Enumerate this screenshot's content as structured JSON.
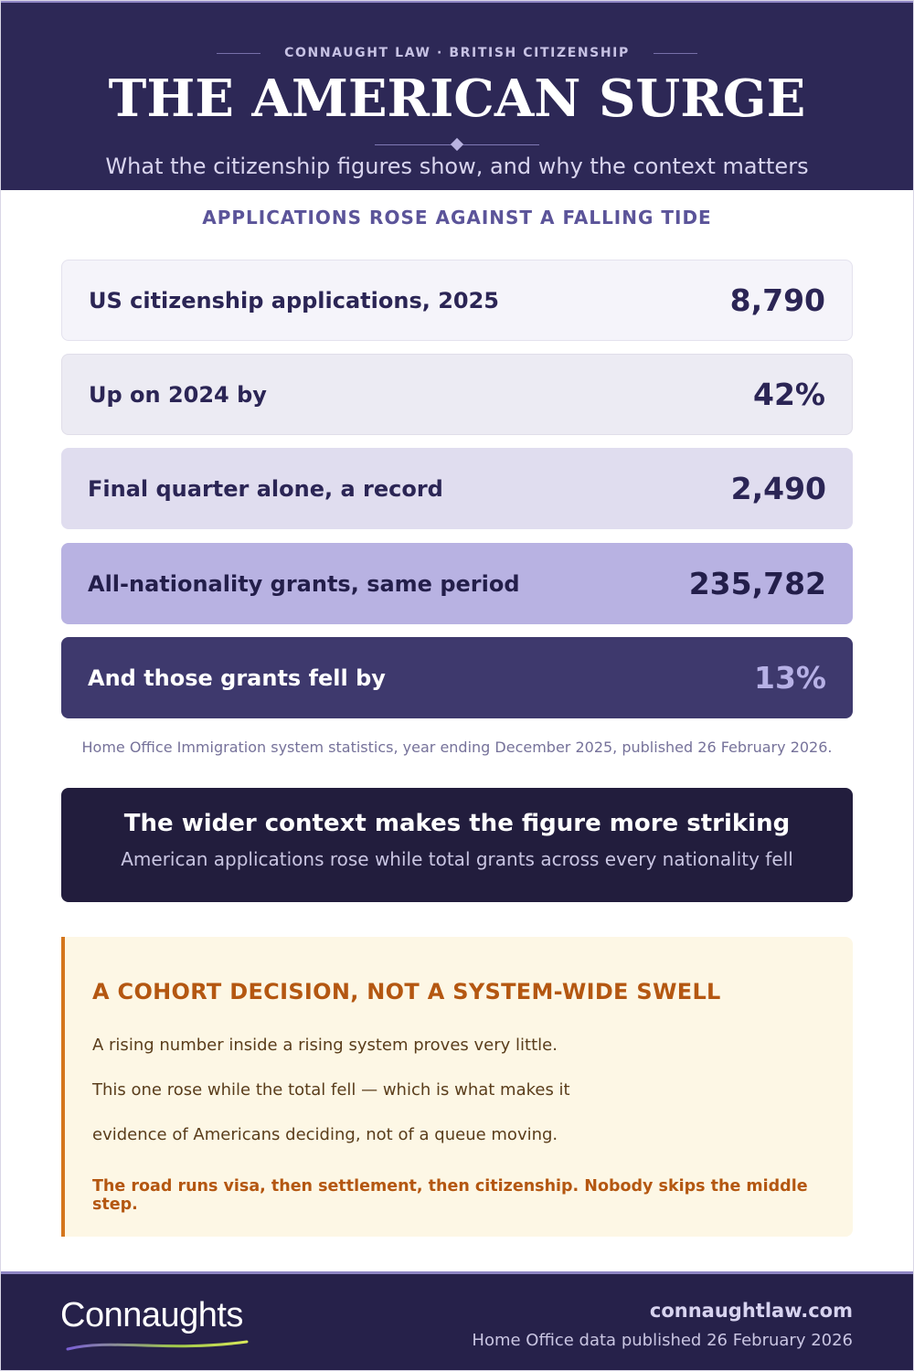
{
  "header": {
    "kicker": "CONNAUGHT LAW · BRITISH CITIZENSHIP",
    "title": "THE AMERICAN SURGE",
    "subtitle": "What the citizenship figures show, and why the context matters"
  },
  "section_heading": "APPLICATIONS ROSE AGAINST A FALLING TIDE",
  "stats": [
    {
      "label": "US citizenship applications, 2025",
      "value": "8,790"
    },
    {
      "label": "Up on 2024 by",
      "value": "42%"
    },
    {
      "label": "Final quarter alone, a record",
      "value": "2,490"
    },
    {
      "label": "All-nationality grants, same period",
      "value": "235,782"
    },
    {
      "label": "And those grants fell by",
      "value": "13%"
    }
  ],
  "source": "Home Office Immigration system statistics, year ending December 2025, published 26 February 2026.",
  "context": {
    "title": "The wider context makes the figure more striking",
    "subtitle": "American applications rose while total grants across every nationality fell"
  },
  "note": {
    "title": "A COHORT DECISION, NOT A SYSTEM-WIDE SWELL",
    "lines": [
      "A rising number inside a rising system proves very little.",
      "This one rose while the total fell — which is what makes it",
      "evidence of Americans deciding, not of a queue moving."
    ],
    "emphasis": "The road runs visa, then settlement, then citizenship. Nobody skips the middle step."
  },
  "footer": {
    "logo": "Connaughts",
    "url": "connaughtlaw.com",
    "date": "Home Office data published 26 February 2026"
  }
}
